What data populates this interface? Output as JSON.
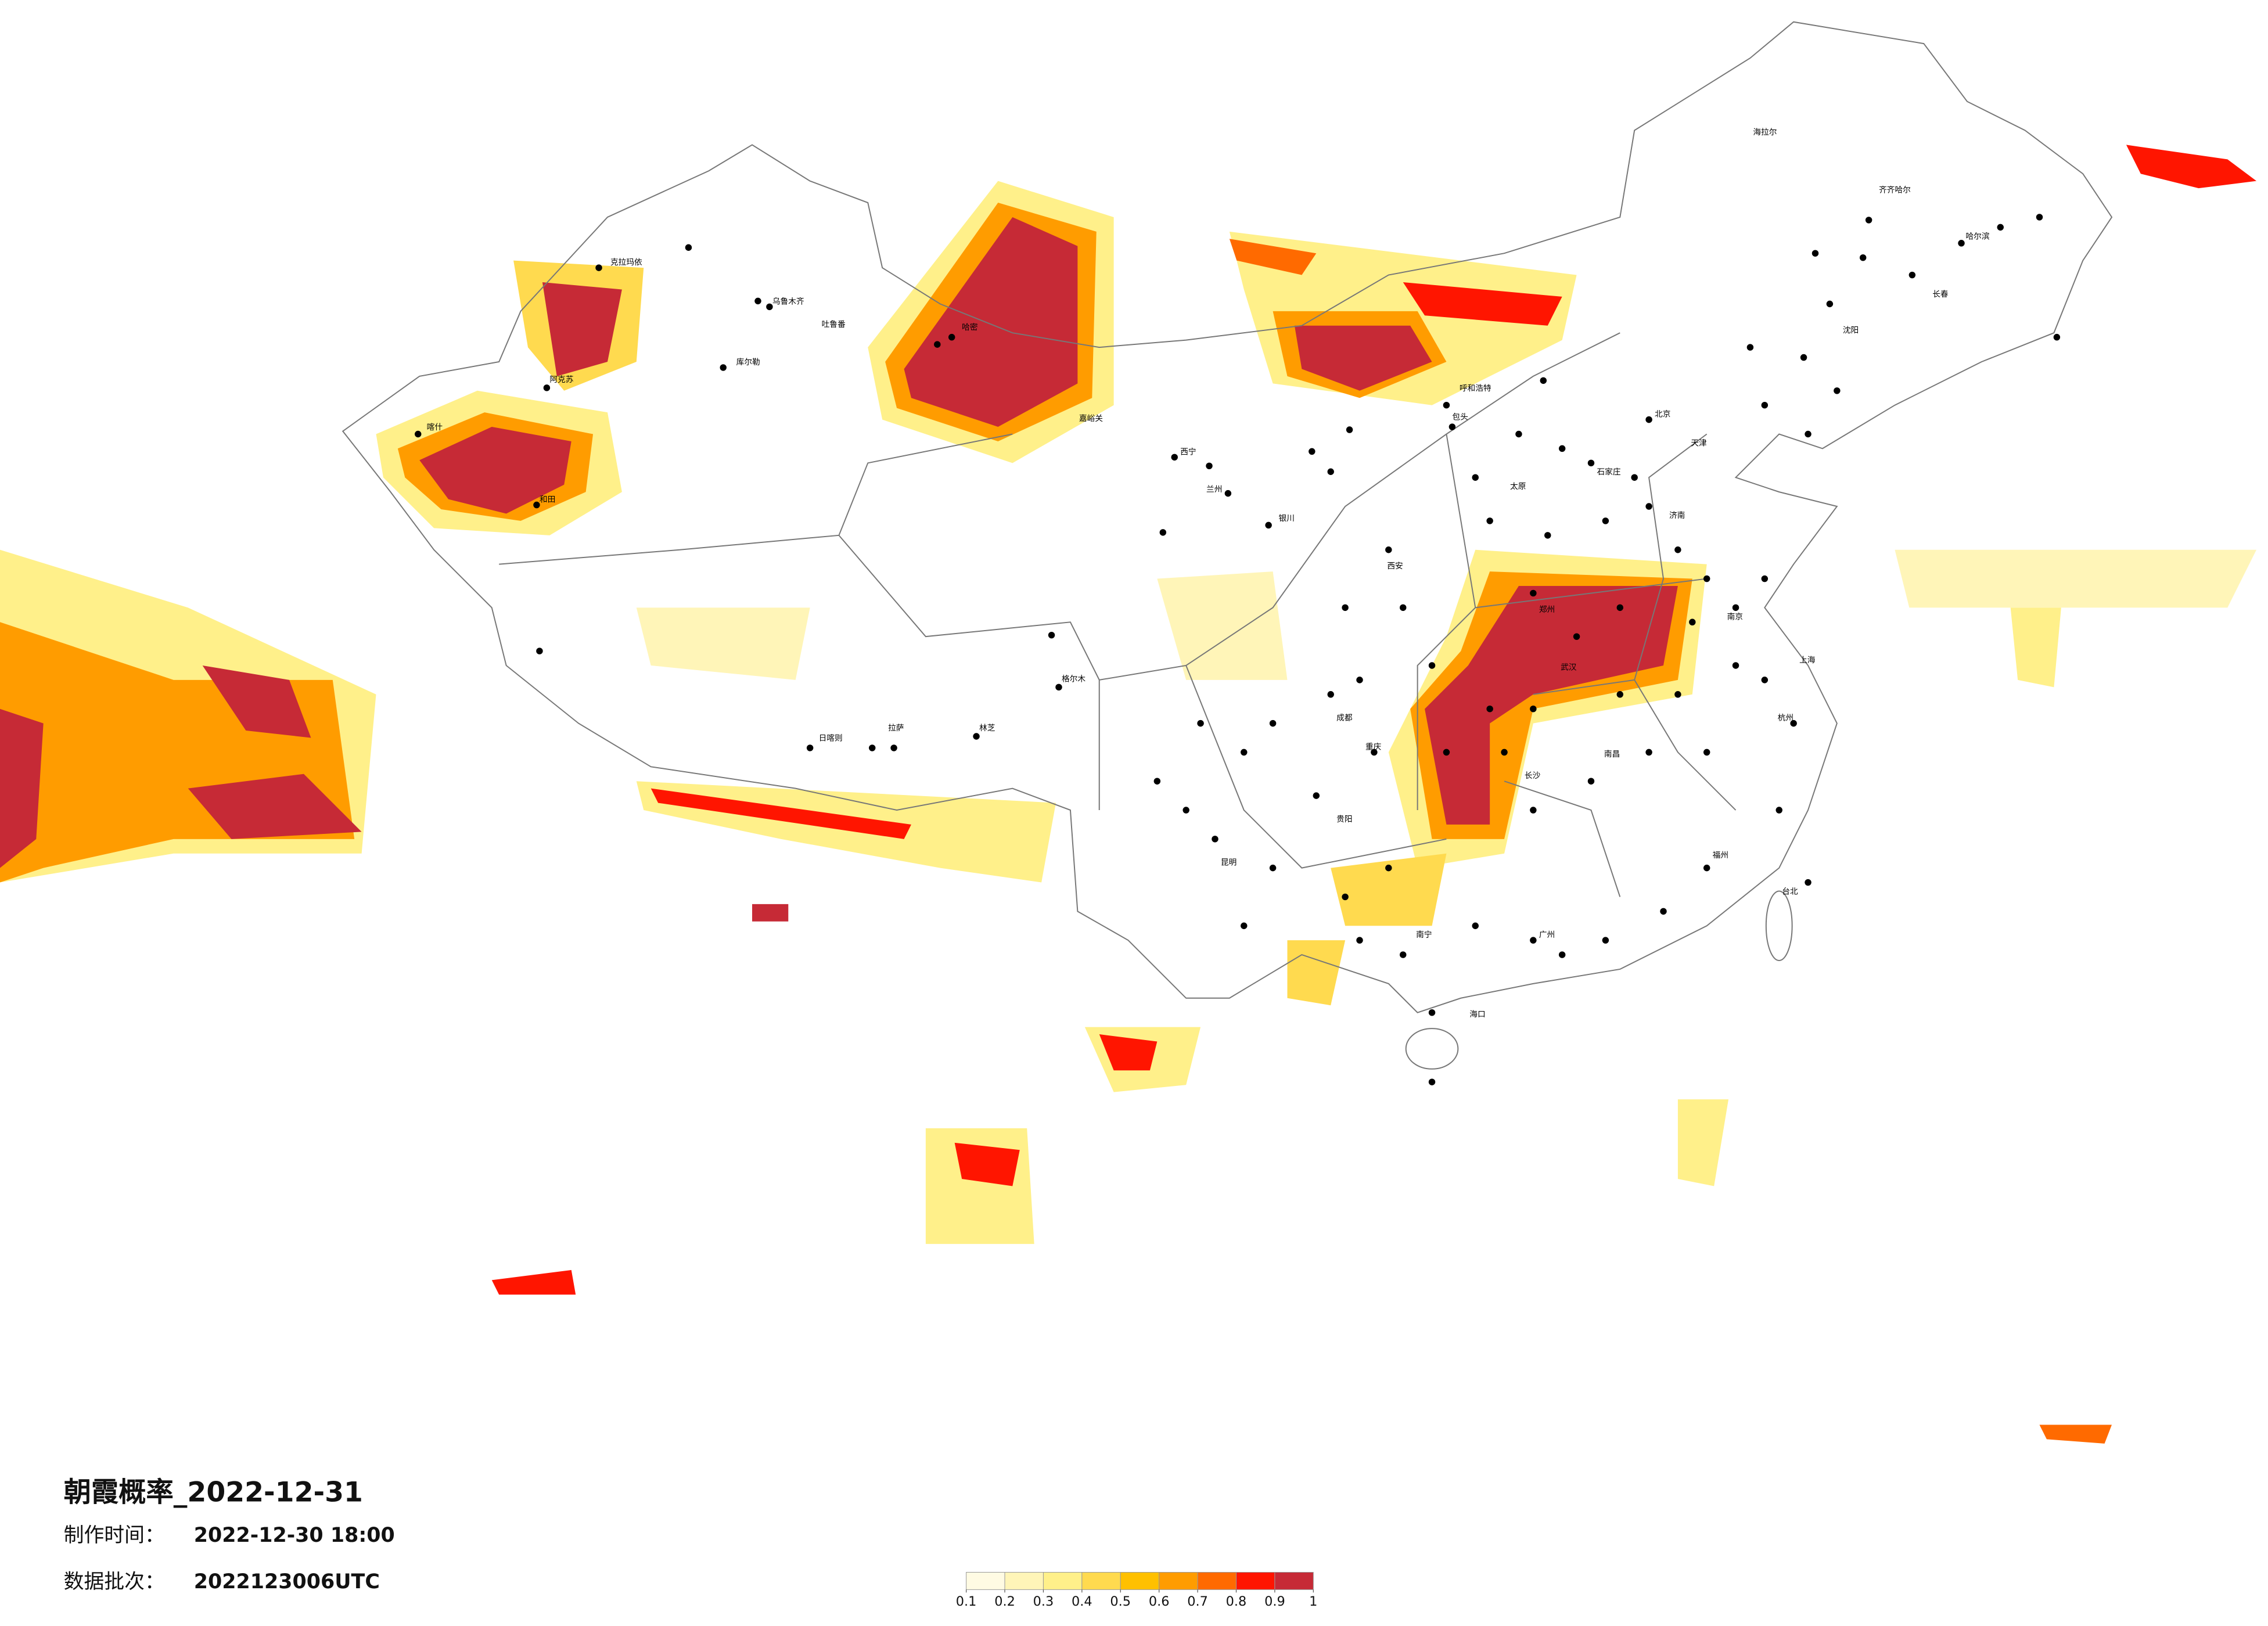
{
  "title": "朝霞概率_2022-12-31",
  "made_time": {
    "label": "制作时间：",
    "value": "2022-12-30 18:00"
  },
  "data_batch": {
    "label": "数据批次：",
    "value": "2022123006UTC"
  },
  "legend": {
    "ticks": [
      0.1,
      0.2,
      0.3,
      0.4,
      0.5,
      0.6,
      0.7,
      0.8,
      0.9,
      1
    ],
    "colors": [
      "#fffbe3",
      "#fff5b8",
      "#fff08a",
      "#ffda4f",
      "#ffc000",
      "#ff9c00",
      "#ff6a00",
      "#ff1500",
      "#c62a36"
    ]
  },
  "cities": [
    "克拉玛依",
    "乌鲁木齐",
    "吐鲁番",
    "库尔勒",
    "阿克苏",
    "和田",
    "喀什",
    "哈密",
    "嘉峪关",
    "格尔木",
    "拉萨",
    "日喀则",
    "林芝",
    "西宁",
    "兰州",
    "银川",
    "呼和浩特",
    "包头",
    "海拉尔",
    "齐齐哈尔",
    "哈尔滨",
    "长春",
    "沈阳",
    "北京",
    "天津",
    "石家庄",
    "太原",
    "济南",
    "郑州",
    "西安",
    "武汉",
    "长沙",
    "南昌",
    "南京",
    "上海",
    "杭州",
    "福州",
    "广州",
    "南宁",
    "昆明",
    "贵阳",
    "成都",
    "重庆",
    "海口",
    "台北"
  ]
}
